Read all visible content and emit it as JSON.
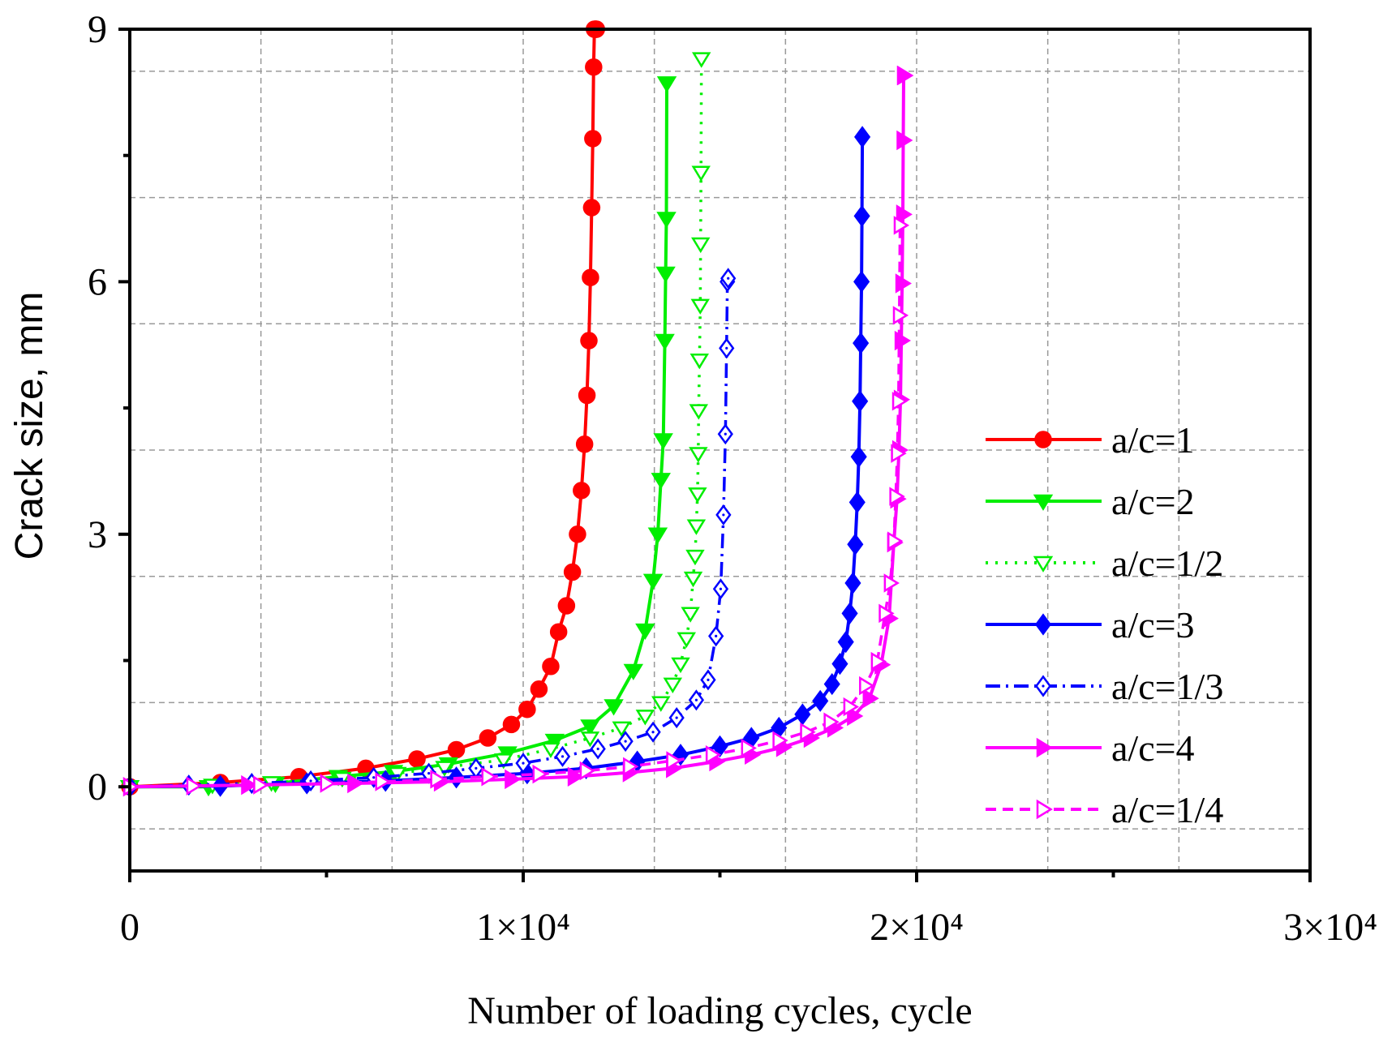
{
  "chart_data": {
    "type": "line",
    "xlabel": "Number of loading cycles, cycle",
    "ylabel": "Crack size, mm",
    "xlim": [
      0,
      30000
    ],
    "ylim": [
      -1,
      9
    ],
    "x_ticks": [
      {
        "value": 0,
        "label": "0"
      },
      {
        "value": 10000,
        "label": "1×10⁴"
      },
      {
        "value": 20000,
        "label": "2×10⁴"
      },
      {
        "value": 30000,
        "label": "3×10⁴"
      }
    ],
    "y_ticks": [
      {
        "value": 0,
        "label": "0"
      },
      {
        "value": 3,
        "label": "3"
      },
      {
        "value": 6,
        "label": "6"
      },
      {
        "value": 9,
        "label": "9"
      }
    ],
    "grid": true,
    "legend_position": "right",
    "series": [
      {
        "name": "a/c=1",
        "color": "#ff0000",
        "marker": "circle",
        "filled": true,
        "dash": "solid",
        "x": [
          0,
          2300,
          4300,
          6000,
          7300,
          8300,
          9100,
          9700,
          10100,
          10400,
          10700,
          10900,
          11100,
          11250,
          11380,
          11480,
          11560,
          11620,
          11670,
          11710,
          11740,
          11770,
          11790,
          11810,
          11830,
          11850,
          11860
        ],
        "y": [
          0,
          0.05,
          0.12,
          0.22,
          0.33,
          0.44,
          0.58,
          0.74,
          0.92,
          1.16,
          1.43,
          1.84,
          2.15,
          2.55,
          3.0,
          3.52,
          4.07,
          4.65,
          5.3,
          6.05,
          6.88,
          7.7,
          8.55,
          9.0,
          9.0,
          9.0,
          9.0
        ]
      },
      {
        "name": "a/c=2",
        "color": "#00ee00",
        "marker": "triangle-down",
        "filled": true,
        "dash": "solid",
        "x": [
          0,
          2000,
          3700,
          5300,
          6700,
          8100,
          9600,
          10800,
          11700,
          12300,
          12800,
          13100,
          13300,
          13420,
          13500,
          13560,
          13600,
          13620,
          13640,
          13650
        ],
        "y": [
          0,
          0,
          0.04,
          0.12,
          0.18,
          0.27,
          0.4,
          0.55,
          0.72,
          0.96,
          1.38,
          1.86,
          2.45,
          3.0,
          3.65,
          4.12,
          5.3,
          6.1,
          6.75,
          8.36
        ]
      },
      {
        "name": "a/c=1/2",
        "color": "#00ee00",
        "marker": "triangle-down",
        "filled": false,
        "dash": "dot",
        "x": [
          0,
          2100,
          3600,
          5400,
          6800,
          8000,
          9500,
          10700,
          11700,
          12500,
          13100,
          13500,
          13800,
          14000,
          14150,
          14250,
          14320,
          14370,
          14400,
          14430,
          14450,
          14460,
          14480,
          14500,
          14510,
          14520,
          14530
        ],
        "y": [
          0,
          0.02,
          0.05,
          0.1,
          0.16,
          0.23,
          0.32,
          0.45,
          0.58,
          0.7,
          0.84,
          1.0,
          1.22,
          1.46,
          1.76,
          2.06,
          2.48,
          2.74,
          3.1,
          3.48,
          3.96,
          4.47,
          5.07,
          5.72,
          6.45,
          7.3,
          8.65
        ]
      },
      {
        "name": "a/c=3",
        "color": "#0000ff",
        "marker": "diamond",
        "filled": true,
        "dash": "solid",
        "x": [
          0,
          2300,
          4500,
          6500,
          8300,
          10100,
          11600,
          12900,
          14000,
          15000,
          15800,
          16500,
          17100,
          17550,
          17850,
          18050,
          18200,
          18300,
          18380,
          18440,
          18490,
          18530,
          18560,
          18580,
          18600,
          18610,
          18620
        ],
        "y": [
          0,
          0.01,
          0.04,
          0.07,
          0.11,
          0.16,
          0.22,
          0.3,
          0.38,
          0.48,
          0.58,
          0.7,
          0.86,
          1.02,
          1.22,
          1.46,
          1.72,
          2.06,
          2.42,
          2.88,
          3.38,
          3.92,
          4.58,
          5.27,
          6.0,
          6.78,
          7.72
        ]
      },
      {
        "name": "a/c=1/3",
        "color": "#0000ff",
        "marker": "diamond",
        "filled": false,
        "dash": "dashdot",
        "x": [
          0,
          1500,
          3100,
          4600,
          6200,
          7600,
          8800,
          10000,
          11000,
          11900,
          12600,
          13300,
          13900,
          14400,
          14700,
          14900,
          15020,
          15090,
          15140,
          15170,
          15190,
          15210
        ],
        "y": [
          0,
          0.02,
          0.04,
          0.07,
          0.11,
          0.16,
          0.22,
          0.28,
          0.36,
          0.45,
          0.54,
          0.65,
          0.82,
          1.03,
          1.27,
          1.79,
          2.35,
          3.23,
          4.19,
          5.21,
          6.0,
          6.04
        ]
      },
      {
        "name": "a/c=4",
        "color": "#ff00ff",
        "marker": "triangle-right",
        "filled": true,
        "dash": "solid",
        "x": [
          0,
          3000,
          5700,
          7900,
          9700,
          11300,
          12700,
          13800,
          14900,
          15800,
          16600,
          17300,
          17900,
          18400,
          18800,
          19100,
          19300,
          19420,
          19500,
          19550,
          19590,
          19610,
          19630,
          19650,
          19660,
          19670,
          19680
        ],
        "y": [
          0,
          0.02,
          0.04,
          0.06,
          0.09,
          0.12,
          0.17,
          0.22,
          0.3,
          0.38,
          0.47,
          0.58,
          0.7,
          0.84,
          1.05,
          1.45,
          2.0,
          2.9,
          3.42,
          4.0,
          4.6,
          5.3,
          5.98,
          6.8,
          7.68,
          8.45,
          8.45
        ]
      },
      {
        "name": "a/c=1/4",
        "color": "#ff00ff",
        "marker": "triangle-right",
        "filled": false,
        "dash": "dash",
        "x": [
          0,
          1600,
          3300,
          5000,
          6400,
          7800,
          9100,
          10400,
          11600,
          12700,
          13800,
          14800,
          15700,
          16500,
          17200,
          17800,
          18300,
          18700,
          19000,
          19200,
          19330,
          19420,
          19470,
          19510,
          19540,
          19560,
          19580
        ],
        "y": [
          0,
          0.01,
          0.02,
          0.04,
          0.06,
          0.09,
          0.12,
          0.15,
          0.19,
          0.24,
          0.31,
          0.38,
          0.46,
          0.55,
          0.65,
          0.77,
          0.95,
          1.2,
          1.49,
          2.06,
          2.42,
          2.92,
          3.45,
          3.96,
          4.58,
          5.6,
          6.67
        ]
      }
    ]
  }
}
